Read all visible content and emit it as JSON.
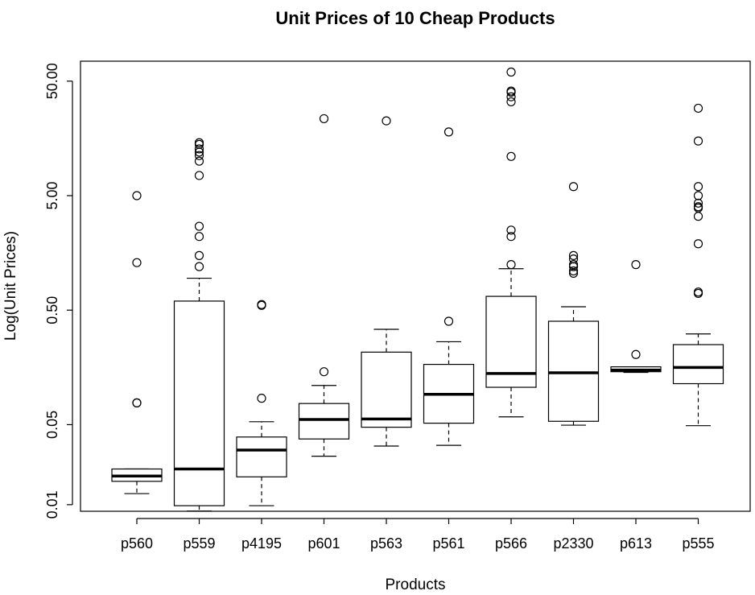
{
  "chart_data": {
    "type": "box",
    "title": "Unit Prices of 10 Cheap Products",
    "xlabel": "Products",
    "ylabel": "Log(Unit Prices)",
    "y_scale": "log",
    "ylim": [
      0.0095,
      70
    ],
    "y_ticks": [
      0.01,
      0.05,
      0.5,
      5,
      50
    ],
    "y_tick_labels": [
      "0.01",
      "0.05",
      "0.50",
      "5.00",
      "50.00"
    ],
    "categories": [
      "p560",
      "p559",
      "p4195",
      "p601",
      "p563",
      "p561",
      "p566",
      "p2330",
      "p613",
      "p555"
    ],
    "boxes": [
      {
        "name": "p560",
        "whisker_low": 0.0125,
        "q1": 0.016,
        "median": 0.0178,
        "q3": 0.0205,
        "whisker_high": 0.0205,
        "outliers": [
          5.0,
          1.3,
          0.0775,
          0.0775
        ]
      },
      {
        "name": "p559",
        "whisker_low": 0.0088,
        "q1": 0.0098,
        "median": 0.0205,
        "q3": 0.6,
        "whisker_high": 0.95,
        "outliers": [
          1.2,
          1.5,
          2.2,
          2.7,
          7.5,
          10.0,
          11.2,
          12.0,
          12.8,
          14.0,
          14.5
        ]
      },
      {
        "name": "p4195",
        "whisker_low": 0.0098,
        "q1": 0.0175,
        "median": 0.03,
        "q3": 0.039,
        "whisker_high": 0.053,
        "outliers": [
          0.085,
          0.55,
          0.56
        ]
      },
      {
        "name": "p601",
        "whisker_low": 0.0265,
        "q1": 0.0375,
        "median": 0.0555,
        "q3": 0.0765,
        "whisker_high": 0.11,
        "outliers": [
          0.145,
          23.5
        ]
      },
      {
        "name": "p563",
        "whisker_low": 0.0325,
        "q1": 0.0475,
        "median": 0.056,
        "q3": 0.215,
        "whisker_high": 0.34,
        "outliers": [
          22.5
        ]
      },
      {
        "name": "p561",
        "whisker_low": 0.033,
        "q1": 0.0515,
        "median": 0.092,
        "q3": 0.168,
        "whisker_high": 0.265,
        "outliers": [
          0.4,
          18.0
        ]
      },
      {
        "name": "p566",
        "whisker_low": 0.0585,
        "q1": 0.106,
        "median": 0.14,
        "q3": 0.66,
        "whisker_high": 1.15,
        "outliers": [
          1.25,
          2.2,
          2.5,
          11.0,
          33.0,
          36.5,
          40.0,
          41.0,
          60.0
        ]
      },
      {
        "name": "p2330",
        "whisker_low": 0.0495,
        "q1": 0.0535,
        "median": 0.142,
        "q3": 0.4,
        "whisker_high": 0.535,
        "outliers": [
          1.05,
          1.1,
          1.2,
          1.25,
          1.4,
          1.5,
          6.0
        ]
      },
      {
        "name": "p613",
        "whisker_low": 0.143,
        "q1": 0.145,
        "median": 0.15,
        "q3": 0.16,
        "whisker_high": 0.16,
        "outliers": [
          0.205,
          1.25
        ]
      },
      {
        "name": "p555",
        "whisker_low": 0.049,
        "q1": 0.114,
        "median": 0.158,
        "q3": 0.25,
        "whisker_high": 0.31,
        "outliers": [
          0.7,
          0.72,
          1.9,
          3.3,
          3.9,
          4.0,
          4.3,
          5.0,
          6.0,
          15.0,
          29.0
        ]
      }
    ]
  }
}
